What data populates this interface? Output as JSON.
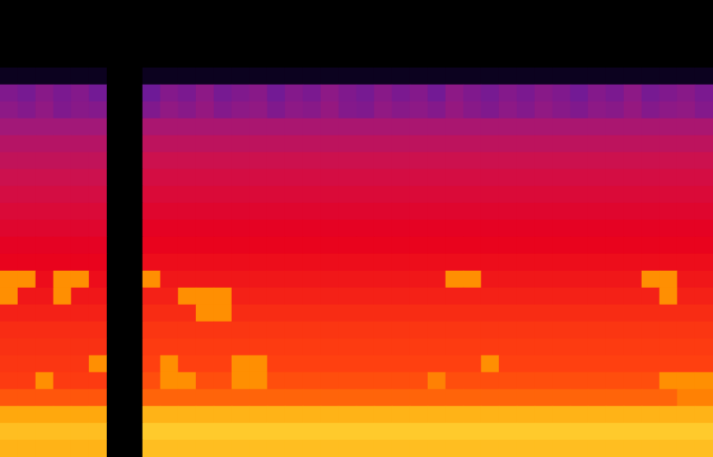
{
  "chart_data": {
    "type": "heatmap",
    "tick_labels": false,
    "color_range": [
      0,
      100
    ],
    "cells": [
      [
        0,
        0,
        0,
        0,
        0,
        0,
        0,
        0,
        0,
        0,
        0,
        0,
        0,
        0,
        0,
        0,
        0,
        0,
        0,
        0,
        0,
        0,
        0,
        0,
        0,
        0,
        0,
        0,
        0,
        0,
        0,
        0,
        0,
        0,
        0,
        0,
        0,
        0,
        0,
        0
      ],
      [
        0,
        0,
        0,
        0,
        0,
        0,
        0,
        0,
        0,
        0,
        0,
        0,
        0,
        0,
        0,
        0,
        0,
        0,
        0,
        0,
        0,
        0,
        0,
        0,
        0,
        0,
        0,
        0,
        0,
        0,
        0,
        0,
        0,
        0,
        0,
        0,
        0,
        0,
        0,
        0
      ],
      [
        0,
        0,
        0,
        0,
        0,
        0,
        0,
        0,
        0,
        0,
        0,
        0,
        0,
        0,
        0,
        0,
        0,
        0,
        0,
        0,
        0,
        0,
        0,
        0,
        0,
        0,
        0,
        0,
        0,
        0,
        0,
        0,
        0,
        0,
        0,
        0,
        0,
        0,
        0,
        0
      ],
      [
        0,
        0,
        0,
        0,
        0,
        0,
        0,
        0,
        0,
        0,
        0,
        0,
        0,
        0,
        0,
        0,
        0,
        0,
        0,
        0,
        0,
        0,
        0,
        0,
        0,
        0,
        0,
        0,
        0,
        0,
        0,
        0,
        0,
        0,
        0,
        0,
        0,
        0,
        0,
        0
      ],
      [
        6,
        6,
        6,
        6,
        6,
        6,
        0,
        0,
        6,
        6,
        6,
        6,
        6,
        6,
        6,
        6,
        6,
        6,
        6,
        6,
        6,
        6,
        6,
        6,
        6,
        6,
        6,
        6,
        6,
        6,
        6,
        6,
        6,
        6,
        6,
        6,
        6,
        6,
        6,
        6
      ],
      [
        30,
        28,
        32,
        29,
        31,
        27,
        0,
        0,
        26,
        31,
        29,
        33,
        28,
        30,
        32,
        27,
        31,
        29,
        33,
        30,
        28,
        32,
        29,
        31,
        27,
        33,
        30,
        28,
        31,
        29,
        32,
        30,
        27,
        31,
        29,
        33,
        28,
        30,
        32,
        29
      ],
      [
        33,
        31,
        34,
        30,
        32,
        31,
        0,
        0,
        30,
        34,
        32,
        35,
        31,
        33,
        34,
        30,
        33,
        32,
        35,
        31,
        30,
        34,
        32,
        33,
        31,
        35,
        32,
        30,
        33,
        31,
        34,
        32,
        30,
        33,
        32,
        35,
        31,
        33,
        34,
        31
      ],
      [
        38,
        38,
        38,
        38,
        38,
        38,
        0,
        0,
        40,
        40,
        40,
        40,
        40,
        40,
        40,
        40,
        40,
        40,
        40,
        40,
        40,
        40,
        40,
        40,
        40,
        40,
        40,
        40,
        40,
        40,
        40,
        40,
        40,
        40,
        40,
        40,
        40,
        40,
        40,
        40
      ],
      [
        43,
        43,
        43,
        43,
        43,
        43,
        0,
        0,
        45,
        45,
        45,
        45,
        45,
        45,
        45,
        45,
        45,
        45,
        45,
        45,
        45,
        45,
        45,
        45,
        45,
        45,
        45,
        45,
        45,
        45,
        45,
        45,
        45,
        45,
        45,
        45,
        45,
        45,
        45,
        45
      ],
      [
        46,
        46,
        46,
        46,
        46,
        46,
        0,
        0,
        49,
        49,
        49,
        49,
        49,
        49,
        49,
        49,
        49,
        49,
        49,
        49,
        49,
        49,
        49,
        49,
        49,
        49,
        49,
        49,
        49,
        49,
        49,
        49,
        49,
        49,
        49,
        49,
        49,
        49,
        49,
        49
      ],
      [
        49,
        49,
        49,
        49,
        49,
        49,
        0,
        0,
        52,
        52,
        52,
        52,
        52,
        52,
        52,
        52,
        52,
        52,
        52,
        52,
        52,
        52,
        52,
        52,
        52,
        52,
        52,
        52,
        52,
        52,
        52,
        52,
        52,
        52,
        52,
        52,
        52,
        52,
        52,
        52
      ],
      [
        52,
        52,
        52,
        52,
        52,
        52,
        0,
        0,
        55,
        55,
        55,
        55,
        55,
        55,
        55,
        55,
        55,
        55,
        55,
        55,
        55,
        55,
        55,
        55,
        55,
        55,
        55,
        55,
        55,
        55,
        55,
        55,
        55,
        55,
        55,
        55,
        55,
        55,
        55,
        55
      ],
      [
        55,
        55,
        55,
        55,
        55,
        55,
        0,
        0,
        58,
        58,
        58,
        58,
        58,
        58,
        58,
        58,
        58,
        58,
        58,
        58,
        58,
        58,
        58,
        58,
        58,
        58,
        58,
        58,
        58,
        58,
        58,
        58,
        58,
        58,
        58,
        58,
        58,
        58,
        58,
        58
      ],
      [
        58,
        58,
        58,
        58,
        58,
        58,
        0,
        0,
        61,
        61,
        61,
        61,
        61,
        61,
        61,
        61,
        61,
        61,
        61,
        61,
        61,
        61,
        61,
        61,
        61,
        61,
        61,
        61,
        61,
        61,
        61,
        61,
        61,
        61,
        61,
        61,
        61,
        61,
        61,
        61
      ],
      [
        61,
        61,
        61,
        61,
        61,
        61,
        0,
        0,
        63,
        63,
        63,
        63,
        63,
        63,
        63,
        63,
        63,
        63,
        63,
        63,
        63,
        63,
        63,
        63,
        63,
        63,
        63,
        63,
        63,
        63,
        63,
        63,
        63,
        63,
        63,
        63,
        63,
        63,
        63,
        63
      ],
      [
        63,
        63,
        63,
        63,
        63,
        63,
        0,
        0,
        65,
        65,
        65,
        65,
        65,
        65,
        65,
        65,
        65,
        65,
        65,
        65,
        65,
        65,
        65,
        65,
        65,
        65,
        65,
        65,
        65,
        65,
        65,
        65,
        65,
        65,
        65,
        65,
        65,
        65,
        65,
        65
      ],
      [
        86,
        86,
        65,
        86,
        86,
        65,
        0,
        0,
        86,
        67,
        67,
        67,
        67,
        67,
        67,
        67,
        67,
        67,
        67,
        67,
        67,
        67,
        67,
        67,
        67,
        86,
        86,
        67,
        67,
        67,
        67,
        67,
        67,
        67,
        67,
        67,
        86,
        86,
        67,
        67
      ],
      [
        86,
        67,
        67,
        86,
        67,
        67,
        0,
        0,
        69,
        69,
        86,
        86,
        86,
        69,
        69,
        69,
        69,
        69,
        69,
        69,
        69,
        69,
        69,
        69,
        69,
        69,
        69,
        69,
        69,
        69,
        69,
        69,
        69,
        69,
        69,
        69,
        69,
        86,
        69,
        69
      ],
      [
        69,
        69,
        69,
        69,
        69,
        69,
        0,
        0,
        71,
        71,
        71,
        86,
        86,
        71,
        71,
        71,
        71,
        71,
        71,
        71,
        71,
        71,
        71,
        71,
        71,
        71,
        71,
        71,
        71,
        71,
        71,
        71,
        71,
        71,
        71,
        71,
        71,
        71,
        71,
        71
      ],
      [
        71,
        71,
        71,
        71,
        71,
        71,
        0,
        0,
        73,
        73,
        73,
        73,
        73,
        73,
        73,
        73,
        73,
        73,
        73,
        73,
        73,
        73,
        73,
        73,
        73,
        73,
        73,
        73,
        73,
        73,
        73,
        73,
        73,
        73,
        73,
        73,
        73,
        73,
        73,
        73
      ],
      [
        72,
        72,
        72,
        72,
        72,
        72,
        0,
        0,
        74,
        74,
        74,
        74,
        74,
        74,
        74,
        74,
        74,
        74,
        74,
        74,
        74,
        74,
        74,
        74,
        74,
        74,
        74,
        74,
        74,
        74,
        74,
        74,
        74,
        74,
        74,
        74,
        74,
        74,
        74,
        74
      ],
      [
        73,
        73,
        73,
        73,
        73,
        86,
        0,
        0,
        75,
        86,
        75,
        75,
        75,
        86,
        86,
        75,
        75,
        75,
        75,
        75,
        75,
        75,
        75,
        75,
        75,
        75,
        75,
        86,
        75,
        75,
        75,
        75,
        75,
        75,
        75,
        75,
        75,
        75,
        75,
        75
      ],
      [
        74,
        74,
        86,
        74,
        74,
        74,
        0,
        0,
        77,
        86,
        86,
        77,
        77,
        86,
        86,
        77,
        77,
        77,
        77,
        77,
        77,
        77,
        77,
        77,
        84,
        77,
        77,
        77,
        77,
        77,
        77,
        77,
        77,
        77,
        77,
        77,
        77,
        86,
        86,
        86
      ],
      [
        78,
        78,
        78,
        78,
        78,
        78,
        0,
        0,
        80,
        80,
        80,
        80,
        80,
        80,
        80,
        80,
        80,
        80,
        80,
        80,
        80,
        80,
        80,
        80,
        80,
        80,
        80,
        80,
        80,
        80,
        80,
        80,
        80,
        80,
        80,
        80,
        80,
        80,
        84,
        84
      ],
      [
        90,
        90,
        90,
        90,
        90,
        90,
        0,
        0,
        92,
        92,
        92,
        92,
        92,
        92,
        92,
        92,
        92,
        92,
        92,
        92,
        92,
        92,
        92,
        92,
        92,
        92,
        92,
        92,
        92,
        92,
        92,
        92,
        92,
        92,
        92,
        92,
        92,
        92,
        92,
        92
      ],
      [
        94,
        94,
        94,
        94,
        94,
        94,
        0,
        0,
        96,
        96,
        96,
        96,
        96,
        96,
        96,
        96,
        96,
        96,
        96,
        96,
        96,
        96,
        96,
        96,
        96,
        96,
        96,
        96,
        96,
        96,
        96,
        96,
        96,
        96,
        96,
        96,
        96,
        96,
        96,
        96
      ],
      [
        92,
        92,
        92,
        92,
        92,
        92,
        0,
        0,
        94,
        94,
        94,
        94,
        94,
        94,
        94,
        94,
        94,
        94,
        94,
        94,
        94,
        94,
        94,
        94,
        94,
        94,
        94,
        94,
        94,
        94,
        94,
        94,
        94,
        94,
        94,
        94,
        94,
        94,
        94,
        94
      ]
    ]
  }
}
